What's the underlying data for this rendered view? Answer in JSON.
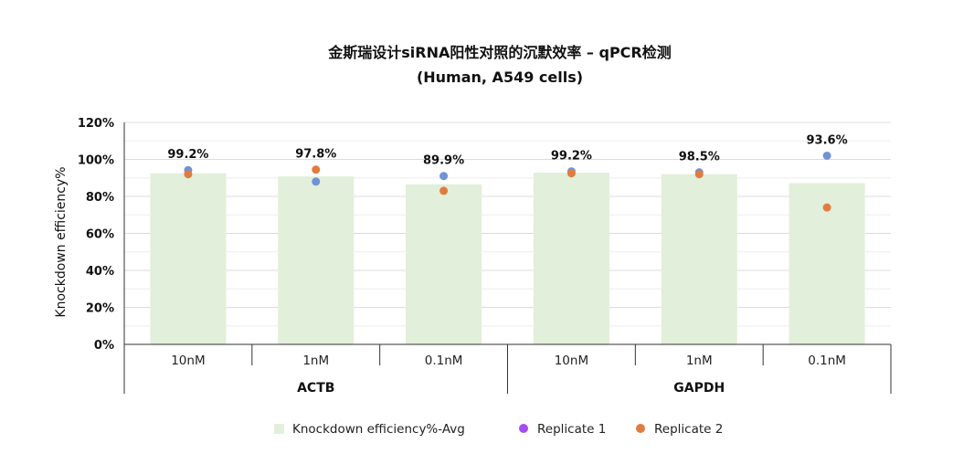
{
  "chart_data": {
    "type": "bar",
    "title": "金斯瑞设计siRNA阳性对照的沉默效率 – qPCR检测",
    "subtitle": "(Human, A549 cells)",
    "ylabel": "Knockdown efficiency%",
    "ylim": [
      0,
      120
    ],
    "yticks": [
      "0%",
      "20%",
      "40%",
      "60%",
      "80%",
      "100%",
      "120%"
    ],
    "grid": true,
    "legend_position": "bottom",
    "groups": [
      {
        "label": "ACTB",
        "categories": [
          "10nM",
          "1nM",
          "0.1nM"
        ]
      },
      {
        "label": "GAPDH",
        "categories": [
          "10nM",
          "1nM",
          "0.1nM"
        ]
      }
    ],
    "categories": [
      "10nM",
      "1nM",
      "0.1nM",
      "10nM",
      "1nM",
      "0.1nM"
    ],
    "series": [
      {
        "name": "Knockdown efficiency%-Avg",
        "kind": "bar",
        "color": "#e2efda",
        "values": [
          92.5,
          90.8,
          86.5,
          92.8,
          92.0,
          87.2
        ]
      },
      {
        "name": "Replicate 1",
        "kind": "point",
        "color": "#6f93d4",
        "legend_color": "#a64df0",
        "values": [
          94.2,
          88.0,
          91.0,
          93.5,
          93.0,
          102.0
        ]
      },
      {
        "name": "Replicate 2",
        "kind": "point",
        "color": "#e07c3e",
        "values": [
          92.0,
          94.5,
          83.0,
          92.5,
          92.0,
          74.0
        ]
      }
    ],
    "data_labels": [
      "99.2%",
      "97.8%",
      "89.9%",
      "99.2%",
      "98.5%",
      "93.6%"
    ]
  }
}
